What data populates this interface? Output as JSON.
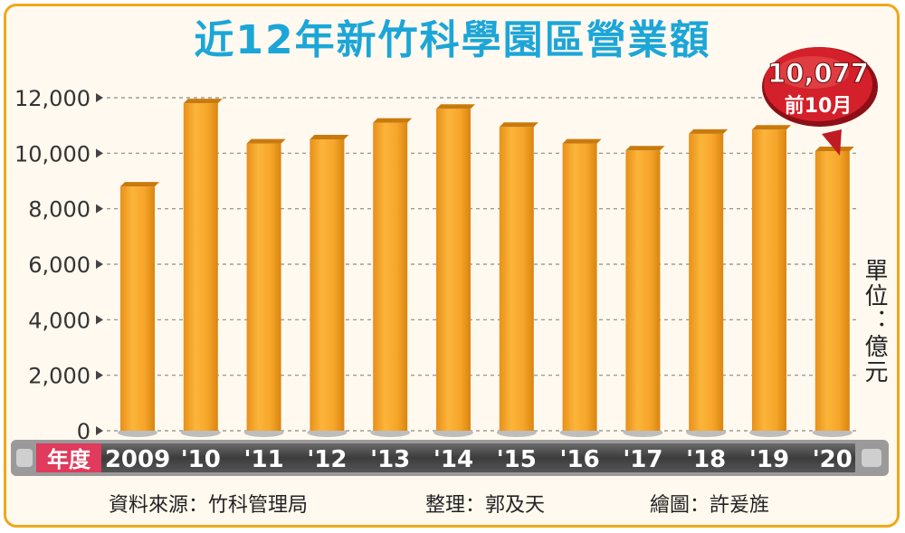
{
  "title": "近12年新竹科學園區營業額",
  "unit_label": "單位：億元",
  "year_axis_label": "年度",
  "callout": {
    "value": "10,077",
    "note": "前10月"
  },
  "credits": {
    "source": "資料來源：竹科管理局",
    "editor": "整理：郭及天",
    "illustrator": "繪圖：許爰旌"
  },
  "colors": {
    "title": "#1ca6d8",
    "bar_main": "#f5a623",
    "bar_top": "#d98510",
    "callout": "#d4202a",
    "axis_band": "#4a4a4a",
    "axis_label_bg": "#e03a5c"
  },
  "chart_data": {
    "type": "bar",
    "title": "近12年新竹科學園區營業額",
    "xlabel": "年度",
    "ylabel": "單位：億元",
    "categories": [
      "2009",
      "'10",
      "'11",
      "'12",
      "'13",
      "'14",
      "'15",
      "'16",
      "'17",
      "'18",
      "'19",
      "'20"
    ],
    "values": [
      8800,
      11800,
      10350,
      10500,
      11100,
      11600,
      10950,
      10350,
      10100,
      10700,
      10850,
      10077
    ],
    "y_ticks": [
      "0",
      "2,000",
      "4,000",
      "6,000",
      "8,000",
      "10,000",
      "12,000"
    ],
    "ylim": [
      0,
      12000
    ],
    "grid": true
  }
}
